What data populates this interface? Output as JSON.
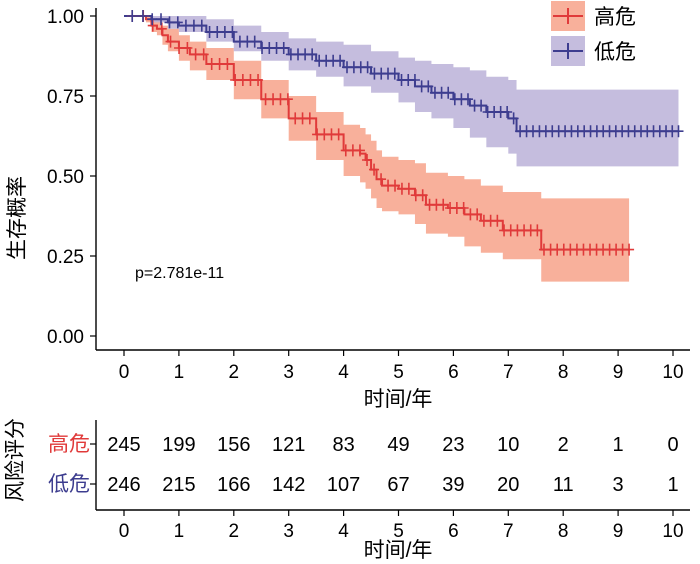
{
  "chart_data": {
    "type": "line",
    "subtype": "kaplan-meier",
    "xlabel": "时间/年",
    "ylabel": "生存概率",
    "xlim": [
      0,
      10
    ],
    "ylim": [
      0,
      1
    ],
    "x_ticks": [
      "0",
      "1",
      "2",
      "3",
      "4",
      "5",
      "6",
      "7",
      "8",
      "9",
      "10"
    ],
    "y_ticks": [
      "0.00",
      "0.25",
      "0.50",
      "0.75",
      "1.00"
    ],
    "annotation": "p=2.781e-11",
    "legend_position": "top-right",
    "series": [
      {
        "name": "高危",
        "color": "#e03a3a",
        "band_color": "#f7a28a",
        "x": [
          0,
          0.4,
          0.5,
          0.6,
          0.7,
          0.8,
          1.0,
          1.2,
          1.5,
          2.0,
          2.5,
          3.0,
          3.5,
          4.0,
          4.3,
          4.4,
          4.5,
          4.6,
          4.7,
          5.0,
          5.3,
          5.5,
          5.9,
          6.2,
          6.5,
          6.9,
          7.6,
          9.2
        ],
        "y": [
          1.0,
          0.99,
          0.97,
          0.96,
          0.94,
          0.92,
          0.9,
          0.88,
          0.85,
          0.8,
          0.74,
          0.68,
          0.63,
          0.58,
          0.57,
          0.55,
          0.52,
          0.49,
          0.47,
          0.46,
          0.44,
          0.41,
          0.4,
          0.38,
          0.36,
          0.33,
          0.27,
          0.27
        ],
        "lower": [
          1.0,
          0.98,
          0.95,
          0.94,
          0.91,
          0.89,
          0.86,
          0.83,
          0.8,
          0.74,
          0.68,
          0.61,
          0.55,
          0.5,
          0.48,
          0.46,
          0.43,
          0.4,
          0.39,
          0.38,
          0.35,
          0.32,
          0.31,
          0.28,
          0.26,
          0.24,
          0.17,
          0.17
        ],
        "upper": [
          1.0,
          1.0,
          0.99,
          0.99,
          0.97,
          0.96,
          0.94,
          0.92,
          0.9,
          0.86,
          0.8,
          0.75,
          0.7,
          0.66,
          0.65,
          0.63,
          0.61,
          0.58,
          0.56,
          0.55,
          0.54,
          0.51,
          0.5,
          0.49,
          0.47,
          0.45,
          0.43,
          0.43
        ]
      },
      {
        "name": "低危",
        "color": "#3d3d8f",
        "band_color": "#bbb2d8",
        "x": [
          0,
          0.5,
          0.8,
          1.0,
          1.5,
          2.0,
          2.5,
          3.0,
          3.5,
          4.0,
          4.5,
          5.0,
          5.3,
          5.6,
          6.0,
          6.3,
          6.6,
          7.0,
          7.15,
          10.1
        ],
        "y": [
          1.0,
          0.99,
          0.98,
          0.97,
          0.95,
          0.92,
          0.9,
          0.88,
          0.86,
          0.84,
          0.82,
          0.8,
          0.78,
          0.76,
          0.74,
          0.72,
          0.7,
          0.68,
          0.64,
          0.64
        ],
        "lower": [
          1.0,
          0.98,
          0.96,
          0.95,
          0.92,
          0.89,
          0.86,
          0.83,
          0.81,
          0.78,
          0.76,
          0.73,
          0.7,
          0.68,
          0.65,
          0.62,
          0.59,
          0.57,
          0.53,
          0.53
        ],
        "upper": [
          1.0,
          1.0,
          1.0,
          1.0,
          0.99,
          0.97,
          0.95,
          0.93,
          0.92,
          0.91,
          0.89,
          0.87,
          0.86,
          0.85,
          0.84,
          0.83,
          0.81,
          0.8,
          0.77,
          0.77
        ]
      }
    ],
    "risk_table": {
      "title": "风险评分",
      "xlabel": "时间/年",
      "rows": [
        {
          "name": "高危",
          "color": "#e03a3a",
          "values": [
            "245",
            "199",
            "156",
            "121",
            "83",
            "49",
            "23",
            "10",
            "2",
            "1",
            "0"
          ]
        },
        {
          "name": "低危",
          "color": "#3d3d8f",
          "values": [
            "246",
            "215",
            "166",
            "142",
            "107",
            "67",
            "39",
            "20",
            "11",
            "3",
            "1"
          ]
        }
      ]
    }
  }
}
